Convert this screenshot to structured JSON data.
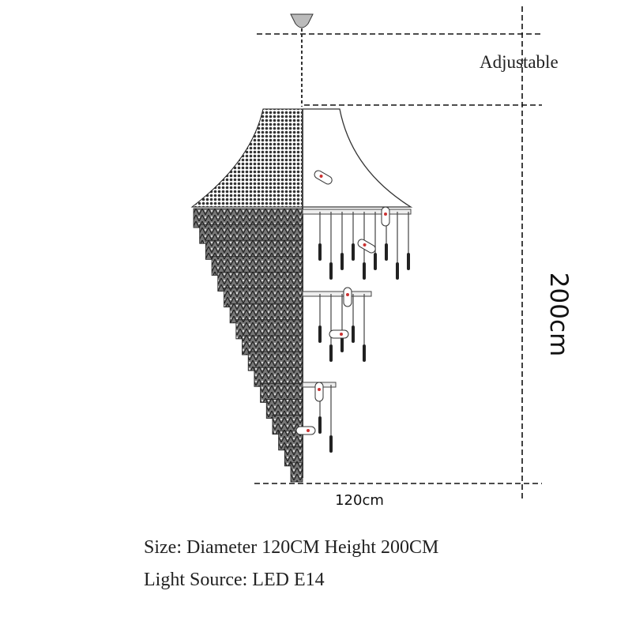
{
  "labels": {
    "adjustable": "Adjustable",
    "height": "200cm",
    "diameter": "120cm"
  },
  "specs": [
    "Size: Diameter 120CM Height 200CM",
    "Light Source: LED E14"
  ]
}
